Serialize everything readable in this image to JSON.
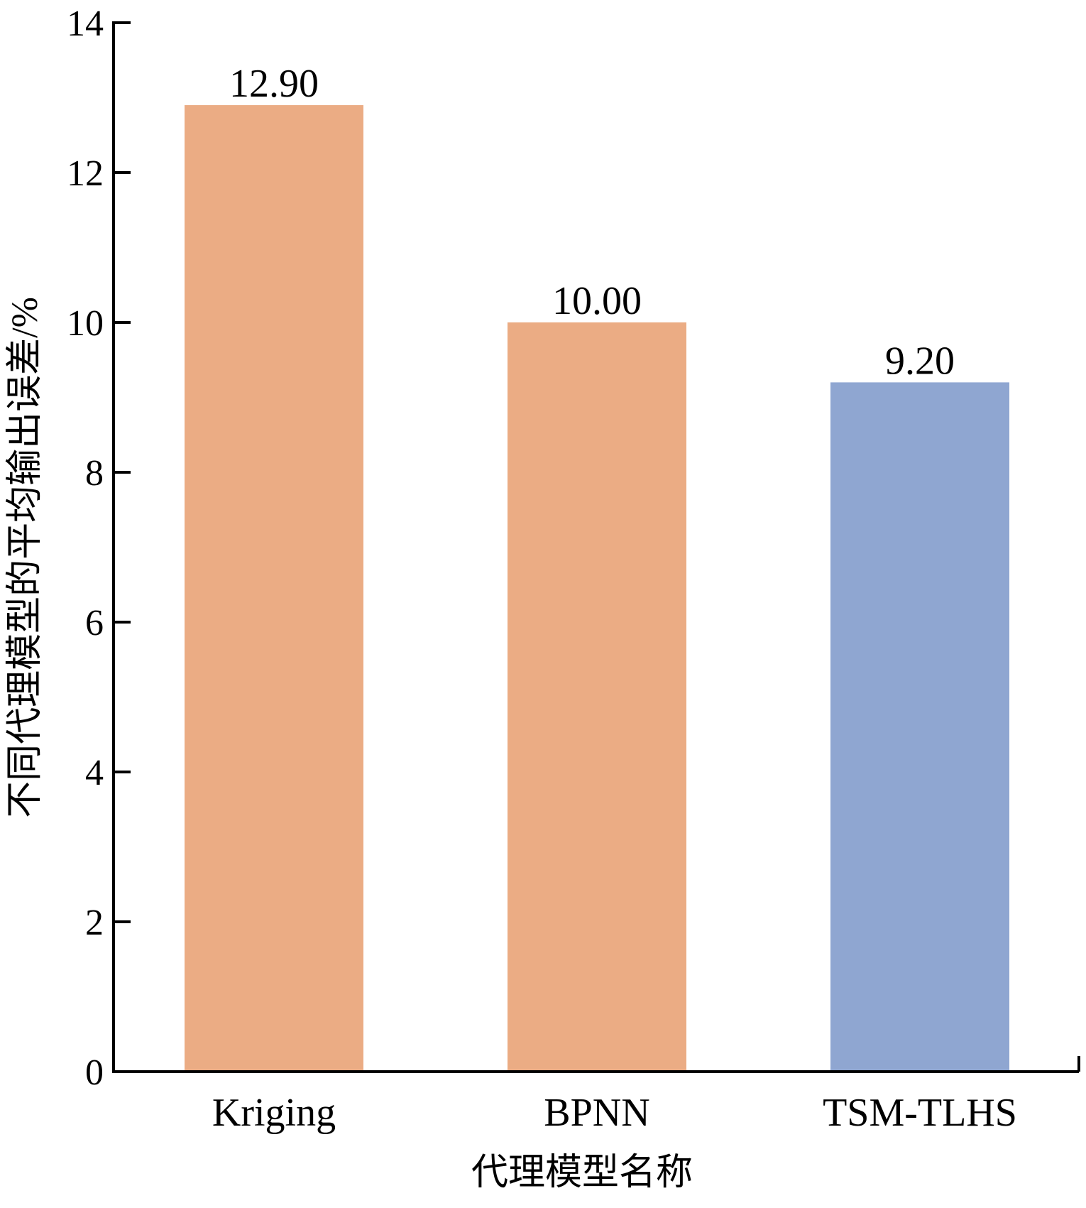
{
  "chart_data": {
    "type": "bar",
    "title": "",
    "xlabel": "代理模型名称",
    "ylabel": "不同代理模型的平均输出误差/%",
    "categories": [
      "Kriging",
      "BPNN",
      "TSM-TLHS"
    ],
    "values": [
      12.9,
      10.0,
      9.2
    ],
    "value_labels": [
      "12.90",
      "10.00",
      "9.20"
    ],
    "bar_colors": [
      "#EBAC84",
      "#EBAC84",
      "#8FA6D1"
    ],
    "ylim": [
      0,
      14
    ],
    "yticks": [
      0,
      2,
      4,
      6,
      8,
      10,
      12,
      14
    ],
    "ytick_labels": [
      "0",
      "2",
      "4",
      "6",
      "8",
      "10",
      "12",
      "14"
    ],
    "grid": false,
    "legend": "none"
  }
}
